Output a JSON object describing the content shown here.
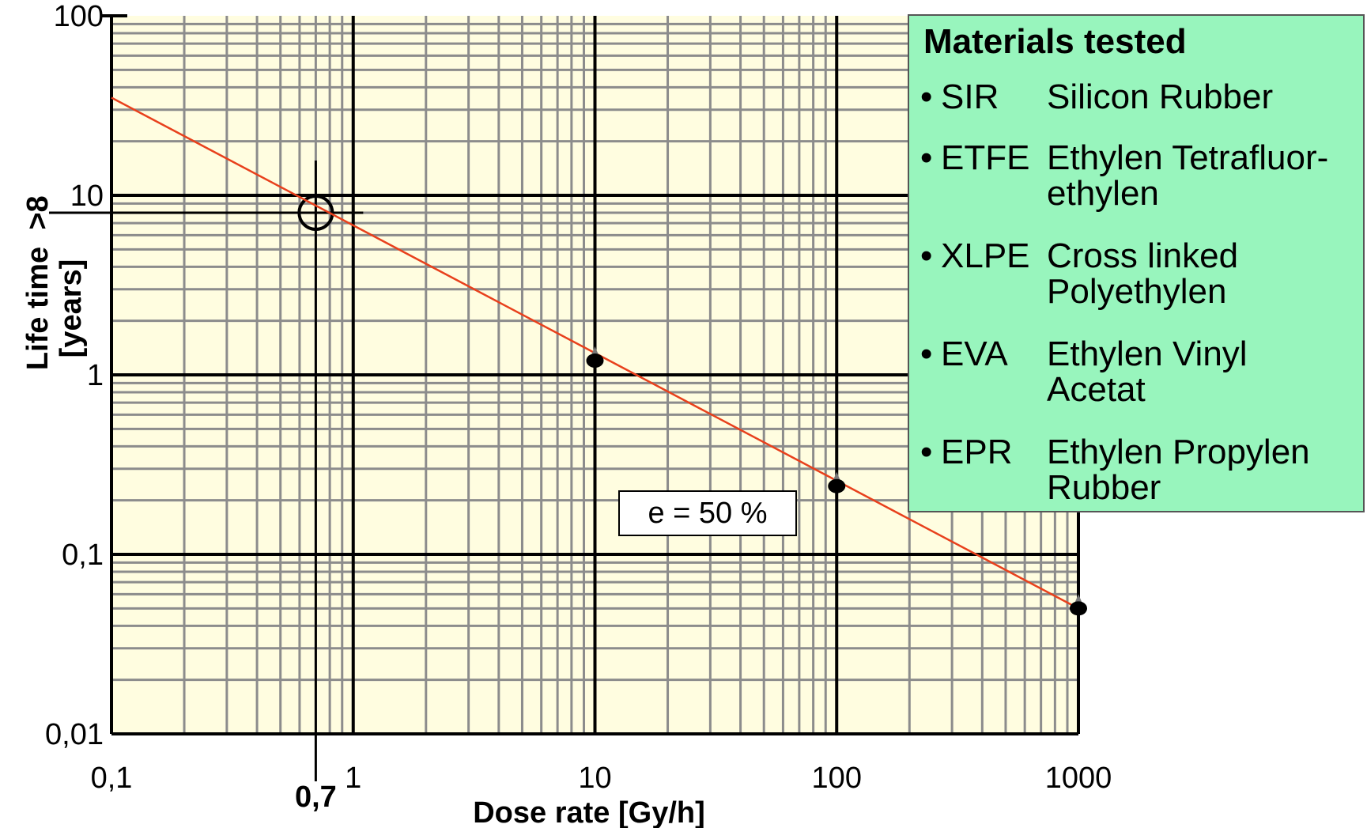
{
  "chart_data": {
    "type": "line",
    "title": "",
    "xlabel": "Dose rate [Gy/h]",
    "ylabel_line1": "Life time",
    "ylabel_line2": "[years]",
    "x_scale": "log",
    "y_scale": "log",
    "xlim": [
      0.1,
      1000
    ],
    "ylim": [
      0.01,
      100
    ],
    "x_ticks": [
      "0,1",
      "1",
      "10",
      "100",
      "1000"
    ],
    "y_ticks": [
      "100",
      "10",
      "1",
      "0,1",
      "0,01"
    ],
    "grid": true,
    "background_color": "#fffde0",
    "grid_color": "#8c8c8c",
    "series": [
      {
        "type": "fit-line",
        "color": "#e8401c",
        "x": [
          0.1,
          1000
        ],
        "y": [
          35,
          0.05
        ]
      },
      {
        "type": "points",
        "color": "#000000",
        "x": [
          10,
          100,
          1000
        ],
        "y": [
          1.2,
          0.24,
          0.05
        ]
      }
    ],
    "highlight": {
      "x": 0.7,
      "y": 8,
      "x_label": "0,7",
      "y_label": ">8"
    },
    "annotation": "e = 50 %",
    "legend": {
      "title": "Materials tested",
      "bullet": "•",
      "items": [
        {
          "abbr": "SIR",
          "desc": [
            "Silicon Rubber"
          ]
        },
        {
          "abbr": "ETFE",
          "desc": [
            "Ethylen Tetrafluor-",
            "ethylen"
          ]
        },
        {
          "abbr": "XLPE",
          "desc": [
            "Cross linked",
            "Polyethylen"
          ]
        },
        {
          "abbr": "EVA",
          "desc": [
            "Ethylen Vinyl",
            "Acetat"
          ]
        },
        {
          "abbr": "EPR",
          "desc": [
            "Ethylen Propylen",
            "Rubber"
          ]
        }
      ]
    }
  }
}
